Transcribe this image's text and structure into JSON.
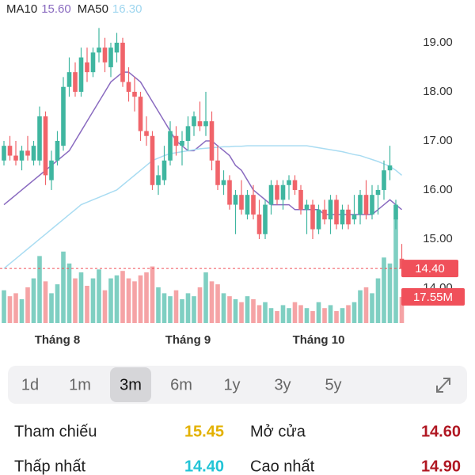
{
  "chart_data": {
    "type": "candlestick",
    "legend": [
      {
        "name": "MA10",
        "color": "#8a6bc0",
        "value": {
          "value": 15.6,
          "label": "15.60"
        }
      },
      {
        "name": "MA50",
        "color": "#9fd6ef",
        "value": {
          "value": 16.3,
          "label": "16.30"
        }
      }
    ],
    "categories": [
      null,
      null,
      null,
      null,
      null,
      null,
      null,
      null,
      null,
      "Tháng 8",
      null,
      null,
      null,
      null,
      null,
      null,
      null,
      null,
      null,
      null,
      null,
      null,
      null,
      null,
      null,
      null,
      null,
      null,
      null,
      null,
      null,
      "Tháng 9",
      null,
      null,
      null,
      null,
      null,
      null,
      null,
      null,
      null,
      null,
      null,
      null,
      null,
      null,
      null,
      null,
      null,
      null,
      null,
      null,
      null,
      "Tháng 10",
      null,
      null,
      null,
      null,
      null,
      null,
      null,
      null,
      null,
      null,
      null,
      null,
      null,
      null
    ],
    "open": [
      16.6,
      16.9,
      16.7,
      16.6,
      16.8,
      16.6,
      16.6,
      17.5,
      16.2,
      16.6,
      16.9,
      18.1,
      18.4,
      18.0,
      18.6,
      18.4,
      18.8,
      18.9,
      18.5,
      18.8,
      19.0,
      18.2,
      18.0,
      17.9,
      17.2,
      17.1,
      16.1,
      16.2,
      16.6,
      17.1,
      16.9,
      17.0,
      17.3,
      17.4,
      17.3,
      17.4,
      16.6,
      16.1,
      16.2,
      15.7,
      15.9,
      15.5,
      15.9,
      15.5,
      15.1,
      15.7,
      16.1,
      15.8,
      16.1,
      16.2,
      16.0,
      15.6,
      15.7,
      15.2,
      15.6,
      15.4,
      15.8,
      15.3,
      15.6,
      15.4,
      15.5,
      15.9,
      15.5,
      15.9,
      16.0,
      16.4,
      15.4,
      14.6
    ],
    "high": [
      17.0,
      17.1,
      17.0,
      16.9,
      17.1,
      17.0,
      17.7,
      17.6,
      16.8,
      17.2,
      18.3,
      18.7,
      18.6,
      18.9,
      18.9,
      18.9,
      19.3,
      19.1,
      19.0,
      19.2,
      19.1,
      18.5,
      18.3,
      18.0,
      17.5,
      17.2,
      16.5,
      16.9,
      17.4,
      17.3,
      17.2,
      17.5,
      17.6,
      17.8,
      18.0,
      17.6,
      16.9,
      16.4,
      16.3,
      16.0,
      16.2,
      16.0,
      16.1,
      15.8,
      15.8,
      16.2,
      16.2,
      16.2,
      16.3,
      16.3,
      16.1,
      15.8,
      15.8,
      15.7,
      15.8,
      15.9,
      15.9,
      15.7,
      15.7,
      15.9,
      16.0,
      16.2,
      16.1,
      16.1,
      16.6,
      16.9,
      15.8,
      14.9
    ],
    "low": [
      16.5,
      16.6,
      16.5,
      16.4,
      16.6,
      16.5,
      16.5,
      16.1,
      16.0,
      16.5,
      16.8,
      17.9,
      17.9,
      17.9,
      18.2,
      18.3,
      18.6,
      18.4,
      18.3,
      18.6,
      18.1,
      17.8,
      17.6,
      17.0,
      16.9,
      16.0,
      15.9,
      16.1,
      16.5,
      16.7,
      16.5,
      16.8,
      17.1,
      17.2,
      17.1,
      16.4,
      16.0,
      15.9,
      15.6,
      15.1,
      15.5,
      15.4,
      15.4,
      15.0,
      15.0,
      15.5,
      15.7,
      15.6,
      15.8,
      15.9,
      15.5,
      15.1,
      15.0,
      15.1,
      15.3,
      15.1,
      15.2,
      15.2,
      15.2,
      15.3,
      15.3,
      15.4,
      15.4,
      15.5,
      15.8,
      16.2,
      15.2,
      14.4
    ],
    "close": [
      16.9,
      16.7,
      16.6,
      16.8,
      16.7,
      16.9,
      17.5,
      16.3,
      16.6,
      17.0,
      18.1,
      18.4,
      18.0,
      18.7,
      18.4,
      18.8,
      18.9,
      18.6,
      18.9,
      19.0,
      18.2,
      18.0,
      17.9,
      17.2,
      17.1,
      16.1,
      16.3,
      16.6,
      17.2,
      16.9,
      17.0,
      17.3,
      17.5,
      17.3,
      17.4,
      16.6,
      16.1,
      16.2,
      15.7,
      15.9,
      15.6,
      15.9,
      15.5,
      15.1,
      15.7,
      16.1,
      15.8,
      16.1,
      16.2,
      16.0,
      15.6,
      15.7,
      15.2,
      15.6,
      15.4,
      15.8,
      15.3,
      15.6,
      15.3,
      15.5,
      15.9,
      15.5,
      15.9,
      16.0,
      16.4,
      16.5,
      15.7,
      14.4
    ],
    "volume": [
      22,
      18,
      20,
      16,
      24,
      30,
      45,
      28,
      20,
      26,
      48,
      40,
      30,
      34,
      25,
      30,
      36,
      22,
      30,
      32,
      35,
      30,
      28,
      32,
      34,
      38,
      24,
      20,
      18,
      22,
      16,
      20,
      18,
      24,
      34,
      28,
      26,
      20,
      18,
      16,
      14,
      18,
      16,
      12,
      14,
      10,
      8,
      12,
      10,
      14,
      12,
      10,
      8,
      14,
      10,
      12,
      8,
      10,
      12,
      14,
      22,
      24,
      20,
      30,
      44,
      40,
      70,
      17.55
    ],
    "series": [
      {
        "name": "MA10",
        "color": "#8a6bc0",
        "values": [
          15.7,
          15.8,
          15.9,
          16.0,
          16.1,
          16.2,
          16.3,
          16.4,
          16.5,
          16.6,
          16.7,
          16.8,
          17.0,
          17.2,
          17.4,
          17.6,
          17.8,
          18.0,
          18.2,
          18.3,
          18.4,
          18.4,
          18.3,
          18.2,
          18.0,
          17.8,
          17.6,
          17.4,
          17.2,
          17.0,
          16.9,
          16.8,
          16.8,
          16.9,
          17.0,
          17.0,
          16.9,
          16.8,
          16.7,
          16.5,
          16.4,
          16.2,
          16.0,
          15.9,
          15.8,
          15.7,
          15.7,
          15.7,
          15.7,
          15.6,
          15.6,
          15.6,
          15.6,
          15.6,
          15.5,
          15.5,
          15.5,
          15.5,
          15.5,
          15.5,
          15.5,
          15.5,
          15.5,
          15.6,
          15.7,
          15.8,
          15.7,
          15.6
        ]
      },
      {
        "name": "MA50",
        "color": "#a9dcf2",
        "values": [
          14.4,
          14.5,
          14.6,
          14.7,
          14.8,
          14.9,
          15.0,
          15.1,
          15.2,
          15.3,
          15.4,
          15.5,
          15.6,
          15.7,
          15.75,
          15.8,
          15.85,
          15.9,
          15.95,
          16.0,
          16.1,
          16.2,
          16.3,
          16.4,
          16.5,
          16.6,
          16.65,
          16.7,
          16.74,
          16.76,
          16.78,
          16.8,
          16.82,
          16.84,
          16.85,
          16.86,
          16.87,
          16.88,
          16.88,
          16.89,
          16.89,
          16.9,
          16.9,
          16.9,
          16.9,
          16.9,
          16.9,
          16.9,
          16.9,
          16.9,
          16.9,
          16.9,
          16.88,
          16.86,
          16.84,
          16.82,
          16.8,
          16.78,
          16.75,
          16.72,
          16.7,
          16.66,
          16.62,
          16.58,
          16.53,
          16.48,
          16.4,
          16.3
        ]
      }
    ],
    "up_color": "#3fb6a0",
    "down_color": "#f0646a",
    "up_volume_color": "#7fcfc2",
    "down_volume_color": "#f5a3a5",
    "ylim": [
      13.29,
      19.87
    ],
    "yticks": [
      {
        "value": 14,
        "label": "14.00"
      },
      {
        "value": 15,
        "label": "15.00"
      },
      {
        "value": 16,
        "label": "16.00"
      },
      {
        "value": 17,
        "label": "17.00"
      },
      {
        "value": 18,
        "label": "18.00"
      },
      {
        "value": 19,
        "label": "19.00"
      }
    ],
    "vlim": [
      0,
      100
    ],
    "last_price": {
      "value": 14.4,
      "label": "14.40"
    },
    "last_volume": {
      "value": 17.55,
      "label": "17.55M"
    }
  },
  "ranges": {
    "options": [
      "1d",
      "1m",
      "3m",
      "6m",
      "1y",
      "3y",
      "5y"
    ],
    "selected": 2
  },
  "stats": [
    {
      "label": "Tham chiếu",
      "value": "15.45",
      "color": "#e3b100"
    },
    {
      "label": "Mở cửa",
      "value": "14.60",
      "color": "#b01722"
    },
    {
      "label": "Thấp nhất",
      "value": "14.40",
      "color": "#22c4d6"
    },
    {
      "label": "Cao nhất",
      "value": "14.90",
      "color": "#b01722"
    }
  ]
}
